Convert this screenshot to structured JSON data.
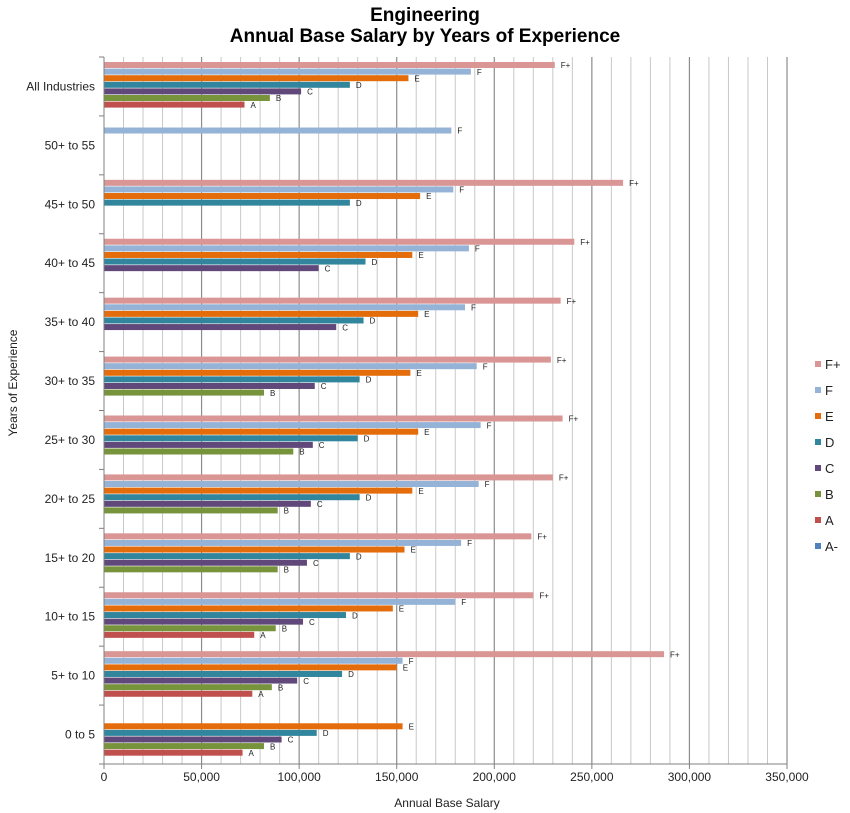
{
  "chart_data": {
    "type": "bar",
    "orientation": "horizontal",
    "title": [
      "Engineering",
      "Annual Base Salary by Years of Experience"
    ],
    "xlabel": "Annual Base Salary",
    "ylabel": "Years of Experience",
    "xlim": [
      0,
      350000
    ],
    "xticks": [
      0,
      50000,
      100000,
      150000,
      200000,
      250000,
      300000,
      350000
    ],
    "xtick_labels": [
      "0",
      "50,000",
      "100,000",
      "150,000",
      "200,000",
      "250,000",
      "300,000",
      "350,000"
    ],
    "grid": "vertical",
    "minor_grid_step": 10000,
    "legend_position": "right",
    "categories": [
      "All Industries",
      "50+ to 55",
      "45+ to 50",
      "40+ to 45",
      "35+ to 40",
      "30+ to 35",
      "25+ to 30",
      "20+ to 25",
      "15+ to 20",
      "10+ to 15",
      "5+ to 10",
      "0 to 5"
    ],
    "series": [
      {
        "name": "F+",
        "color": "#d99694",
        "values": [
          231000,
          null,
          266000,
          241000,
          234000,
          229000,
          235000,
          230000,
          219000,
          220000,
          287000,
          null
        ]
      },
      {
        "name": "F",
        "color": "#95b3d7",
        "values": [
          188000,
          178000,
          179000,
          187000,
          185000,
          191000,
          193000,
          192000,
          183000,
          180000,
          153000,
          null
        ]
      },
      {
        "name": "E",
        "color": "#e46c0a",
        "values": [
          156000,
          null,
          162000,
          158000,
          161000,
          157000,
          161000,
          158000,
          154000,
          148000,
          150000,
          153000
        ]
      },
      {
        "name": "D",
        "color": "#31859c",
        "values": [
          126000,
          null,
          126000,
          134000,
          133000,
          131000,
          130000,
          131000,
          126000,
          124000,
          122000,
          109000
        ]
      },
      {
        "name": "C",
        "color": "#60497a",
        "values": [
          101000,
          null,
          null,
          110000,
          119000,
          108000,
          107000,
          106000,
          104000,
          102000,
          99000,
          91000
        ]
      },
      {
        "name": "B",
        "color": "#77933c",
        "values": [
          85000,
          null,
          null,
          null,
          null,
          82000,
          97000,
          89000,
          89000,
          88000,
          86000,
          82000
        ]
      },
      {
        "name": "A",
        "color": "#c0504d",
        "values": [
          72000,
          null,
          null,
          null,
          null,
          null,
          null,
          null,
          null,
          77000,
          76000,
          71000
        ]
      },
      {
        "name": "A-",
        "color": "#4f81bd",
        "values": [
          null,
          null,
          null,
          null,
          null,
          null,
          null,
          null,
          null,
          null,
          null,
          null
        ]
      }
    ]
  }
}
